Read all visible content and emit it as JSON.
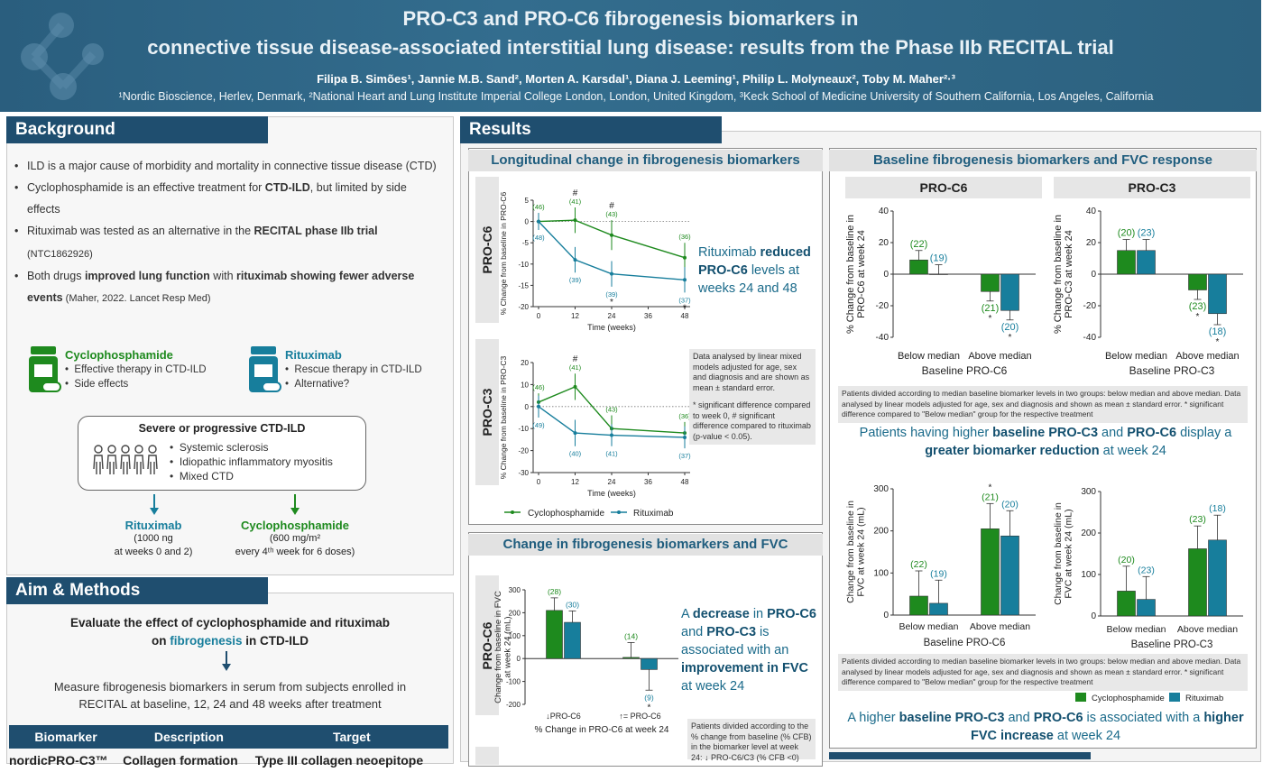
{
  "header": {
    "title_line1": "PRO-C3 and PRO-C6 fibrogenesis biomarkers in",
    "title_line2": "connective tissue disease-associated interstitial lung disease: results from the Phase IIb RECITAL trial",
    "authors": "Filipa B. Simões¹, Jannie M.B. Sand², Morten A. Karsdal¹,  Diana J. Leeming¹, Philip L. Molyneaux², Toby M. Maher²·³",
    "affiliations": "¹Nordic Bioscience, Herlev, Denmark, ²National Heart and Lung Institute Imperial College London, London, United Kingdom, ³Keck School of Medicine University of Southern California, Los Angeles, California"
  },
  "background": {
    "heading": "Background",
    "bullets": [
      [
        "ILD is a major cause of morbidity and mortality in connective tissue disease (CTD)"
      ],
      [
        "Cyclophosphamide is an effective treatment for ",
        "CTD-ILD",
        ", but limited by side effects"
      ],
      [
        "Rituximab was tested as an alternative in the ",
        "RECITAL phase IIb trial",
        " (NTC1862926)"
      ],
      [
        "Both drugs ",
        "improved lung function",
        " with ",
        "rituximab showing fewer adverse events",
        " (Maher, 2022. Lancet Resp Med)"
      ]
    ],
    "cyclo": {
      "name": "Cyclophosphamide",
      "items": [
        "Effective therapy in CTD-ILD",
        "Side effects"
      ]
    },
    "ritux": {
      "name": "Rituximab",
      "items": [
        "Rescue therapy in CTD-ILD",
        "Alternative?"
      ]
    },
    "severe": {
      "title": "Severe or progressive CTD-ILD",
      "items": [
        "Systemic sclerosis",
        "Idiopathic inflammatory myositis",
        "Mixed CTD"
      ]
    },
    "ritux_dose": {
      "name": "Rituximab",
      "dose": "(1000 ng",
      "when": "at weeks 0 and 2)"
    },
    "cyclo_dose": {
      "name": "Cyclophosphamide",
      "dose": "(600 mg/m²",
      "when": "every 4ᵗʰ week for 6 doses)"
    }
  },
  "aim": {
    "heading": "Aim & Methods",
    "line1": "Evaluate the effect of cyclophosphamide and rituximab",
    "line2a": "on ",
    "line2b": "fibrogenesis",
    "line2c": " in CTD-ILD",
    "line3": "Measure fibrogenesis biomarkers in serum from subjects enrolled in",
    "line4": "RECITAL at baseline, 12, 24 and 48 weeks after treatment",
    "table_headers": [
      "Biomarker",
      "Description",
      "Target"
    ],
    "table_row": [
      "nordicPRO-C3™",
      "Collagen formation",
      "Type III collagen neoepitope"
    ]
  },
  "results": {
    "heading": "Results",
    "long_title": "Longitudinal change in fibrogenesis biomarkers",
    "base_title": "Baseline fibrogenesis biomarkers and FVC response",
    "fvc_title": "Change in fibrogenesis biomarkers and FVC",
    "callout1": [
      "Rituximab ",
      "reduced",
      " ",
      "PRO-C6",
      " levels at weeks 24 and 48"
    ],
    "note1": "Data analysed by linear mixed models adjusted for age, sex and diagnosis and are shown as mean ± standard error.",
    "note1b": "* significant difference compared to week 0, # significant difference compared to rituximab (p-value < 0.05).",
    "legend": [
      "Cyclophosphamide",
      "Rituximab"
    ],
    "callout2": [
      "A ",
      "decrease",
      " in ",
      "PRO-C6",
      " and ",
      "PRO-C3",
      " is associated with an ",
      "improvement in FVC",
      " at week 24"
    ],
    "note2": "Patients divided according to the % change from baseline (% CFB) in the biomarker level at week 24: ↓ PRO-C6/C3 (% CFB <0)",
    "base_note": "Patients divided according to median baseline biomarker levels in two groups: below median and above median. Data analysed by linear models adjusted for age, sex and diagnosis and shown as mean ± standard error. * significant difference compared to \"Below median\" group for the respective treatment",
    "callout3": [
      "Patients having higher ",
      "baseline PRO-C3",
      " and ",
      "PRO-C6",
      " display a ",
      "greater biomarker reduction",
      " at week 24"
    ],
    "fvc_note": "Patients divided according to median baseline biomarker levels in two groups: below median and above median. Data analysed by linear models adjusted for age, sex and diagnosis and shown as mean ± standard error. * significant difference compared to \"Below median\" group for the respective treatment",
    "callout4": [
      "A higher ",
      "baseline PRO-C3",
      " and ",
      "PRO-C6",
      " is associated with a ",
      "higher FVC increase",
      " at week 24"
    ]
  },
  "colors": {
    "cyclo": "#1e8a1e",
    "ritux": "#177e9c",
    "navy": "#1f4e6f"
  },
  "chart_data": [
    {
      "type": "line",
      "id": "line_c6",
      "panel_label": "PRO-C6",
      "ylabel": "% Change from baseline in PRO-C6",
      "xlabel": "Time (weeks)",
      "x": [
        0,
        12,
        24,
        36,
        48
      ],
      "x_ticks": [
        0,
        12,
        24,
        36,
        48
      ],
      "ylim": [
        -20,
        5
      ],
      "y_ticks": [
        5,
        0,
        -5,
        -10,
        -15,
        -20
      ],
      "series": [
        {
          "name": "Cyclophosphamide",
          "x": [
            0,
            12,
            24,
            48
          ],
          "values": [
            0,
            0.3,
            -3.2,
            -8.5
          ],
          "err": [
            2,
            3,
            3.5,
            3.5
          ],
          "n_labels": [
            "(46)",
            "(41)",
            "(43)",
            "(36)"
          ],
          "sig": [
            "",
            "#",
            "#",
            ""
          ]
        },
        {
          "name": "Rituximab",
          "x": [
            0,
            12,
            24,
            48
          ],
          "values": [
            0,
            -9,
            -12.3,
            -13.7
          ],
          "err": [
            2,
            3,
            3,
            3
          ],
          "n_labels": [
            "(48)",
            "(39)",
            "(39)",
            "(37)"
          ],
          "sig": [
            "",
            "",
            "*",
            "*"
          ]
        }
      ]
    },
    {
      "type": "line",
      "id": "line_c3",
      "panel_label": "PRO-C3",
      "ylabel": "% Change from baseline in PRO-C3",
      "xlabel": "Time (weeks)",
      "x": [
        0,
        12,
        24,
        36,
        48
      ],
      "x_ticks": [
        0,
        12,
        24,
        36,
        48
      ],
      "ylim": [
        -30,
        20
      ],
      "y_ticks": [
        20,
        10,
        0,
        -10,
        -20,
        -30
      ],
      "series": [
        {
          "name": "Cyclophosphamide",
          "x": [
            0,
            12,
            24,
            48
          ],
          "values": [
            2,
            9,
            -10,
            -12
          ],
          "err": [
            4,
            6,
            6,
            5
          ],
          "n_labels": [
            "(46)",
            "(41)",
            "(43)",
            "(36)"
          ],
          "sig": [
            "",
            "#",
            "",
            ""
          ]
        },
        {
          "name": "Rituximab",
          "x": [
            0,
            12,
            24,
            48
          ],
          "values": [
            0,
            -12,
            -13,
            -14
          ],
          "err": [
            5,
            6,
            5,
            5
          ],
          "n_labels": [
            "(49)",
            "(40)",
            "(41)",
            "(37)"
          ],
          "sig": [
            "",
            "",
            "",
            ""
          ]
        }
      ]
    },
    {
      "type": "bar",
      "id": "fvc_c6",
      "panel_label": "PRO-C6",
      "ylabel": "Change from baseline in FVC at week 24 (mL)",
      "xlabel": "% Change in PRO-C6 at week 24",
      "categories": [
        "↓PRO-C6",
        "↑= PRO-C6"
      ],
      "ylim": [
        -200,
        300
      ],
      "y_ticks": [
        300,
        200,
        100,
        0,
        -100,
        -200
      ],
      "series": [
        {
          "name": "Cyclophosphamide",
          "values": [
            210,
            5
          ],
          "err": [
            55,
            65
          ],
          "n_labels": [
            "(28)",
            "(14)"
          ],
          "sig": [
            "",
            ""
          ]
        },
        {
          "name": "Rituximab",
          "values": [
            158,
            -48
          ],
          "err": [
            50,
            90
          ],
          "n_labels": [
            "(30)",
            "(9)"
          ],
          "sig": [
            "",
            "*"
          ]
        }
      ]
    },
    {
      "type": "bar",
      "id": "base_c6",
      "panel_label": "PRO-C6",
      "ylabel": "% Change from baseline in PRO-C6 at week 24",
      "xlabel": "Baseline PRO-C6",
      "categories": [
        "Below median",
        "Above median"
      ],
      "ylim": [
        -40,
        40
      ],
      "y_ticks": [
        40,
        20,
        0,
        -20,
        -40
      ],
      "series": [
        {
          "name": "Cyclophosphamide",
          "values": [
            9,
            -11
          ],
          "err": [
            6,
            6
          ],
          "n_labels": [
            "(22)",
            "(21)"
          ],
          "sig": [
            "",
            "*"
          ]
        },
        {
          "name": "Rituximab",
          "values": [
            0,
            -23
          ],
          "err": [
            6,
            6
          ],
          "n_labels": [
            "(19)",
            "(20)"
          ],
          "sig": [
            "",
            "*"
          ]
        }
      ]
    },
    {
      "type": "bar",
      "id": "base_c3",
      "panel_label": "PRO-C3",
      "ylabel": "% Change from baseline in PRO-C3 at week 24",
      "xlabel": "Baseline PRO-C3",
      "categories": [
        "Below median",
        "Above median"
      ],
      "ylim": [
        -40,
        40
      ],
      "y_ticks": [
        40,
        20,
        0,
        -20,
        -40
      ],
      "series": [
        {
          "name": "Cyclophosphamide",
          "values": [
            15,
            -10
          ],
          "err": [
            7,
            6
          ],
          "n_labels": [
            "(20)",
            "(23)"
          ],
          "sig": [
            "",
            "*"
          ]
        },
        {
          "name": "Rituximab",
          "values": [
            15,
            -25
          ],
          "err": [
            7,
            7
          ],
          "n_labels": [
            "(23)",
            "(18)"
          ],
          "sig": [
            "",
            "*"
          ]
        }
      ]
    },
    {
      "type": "bar",
      "id": "fvcb_c6",
      "ylabel": "Change from baseline in FVC at week 24 (mL)",
      "xlabel": "Baseline PRO-C6",
      "categories": [
        "Below median",
        "Above median"
      ],
      "ylim": [
        0,
        300
      ],
      "y_ticks": [
        300,
        200,
        100,
        0
      ],
      "series": [
        {
          "name": "Cyclophosphamide",
          "values": [
            45,
            205
          ],
          "err": [
            60,
            60
          ],
          "n_labels": [
            "(22)",
            "(21)"
          ],
          "sig": [
            "",
            "*"
          ]
        },
        {
          "name": "Rituximab",
          "values": [
            28,
            188
          ],
          "err": [
            55,
            60
          ],
          "n_labels": [
            "(19)",
            "(20)"
          ],
          "sig": [
            "",
            ""
          ]
        }
      ]
    },
    {
      "type": "bar",
      "id": "fvcb_c3",
      "ylabel": "Change from baseline in FVC at week 24 (mL)",
      "xlabel": "Baseline PRO-C3",
      "categories": [
        "Below median",
        "Above median"
      ],
      "ylim": [
        0,
        300
      ],
      "y_ticks": [
        300,
        200,
        100,
        0
      ],
      "series": [
        {
          "name": "Cyclophosphamide",
          "values": [
            60,
            162
          ],
          "err": [
            60,
            55
          ],
          "n_labels": [
            "(20)",
            "(23)"
          ],
          "sig": [
            "",
            ""
          ]
        },
        {
          "name": "Rituximab",
          "values": [
            40,
            183
          ],
          "err": [
            55,
            60
          ],
          "n_labels": [
            "(23)",
            "(18)"
          ],
          "sig": [
            "",
            ""
          ]
        }
      ]
    }
  ]
}
